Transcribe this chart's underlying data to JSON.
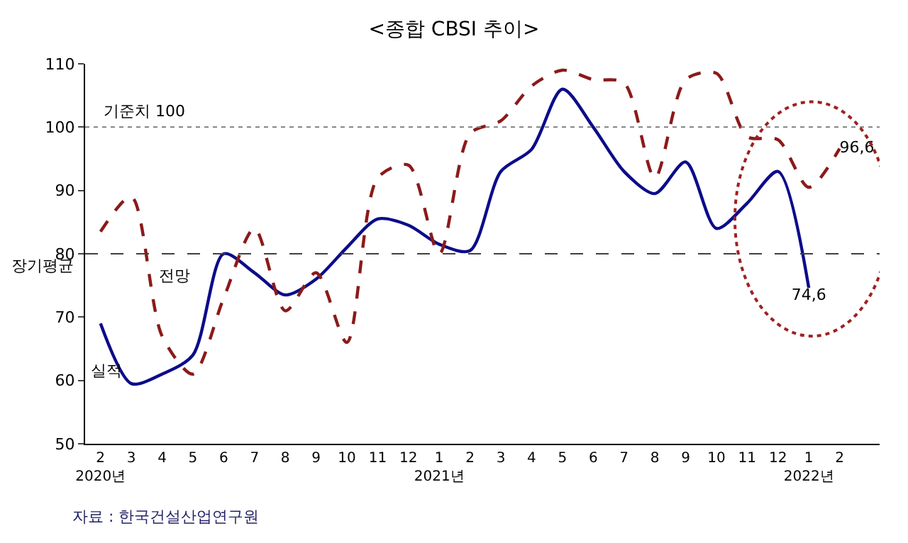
{
  "chart_data": {
    "type": "line",
    "title": "<종합 CBSI 추이>",
    "categories": [
      "2\n2020년",
      "3",
      "4",
      "5",
      "6",
      "7",
      "8",
      "9",
      "10",
      "11",
      "12",
      "1\n2021년",
      "2",
      "3",
      "4",
      "5",
      "6",
      "7",
      "8",
      "9",
      "10",
      "11",
      "12",
      "1\n2022년",
      "2"
    ],
    "series": [
      {
        "name": "실적",
        "color": "#0c0c8a",
        "line_style": "solid",
        "values": [
          69,
          59.5,
          61,
          64,
          80,
          77,
          73.5,
          76,
          81,
          85.5,
          84.5,
          81.5,
          80.5,
          93,
          96.5,
          106,
          100,
          93,
          89.5,
          94.5,
          84,
          88,
          93,
          74.6,
          null
        ],
        "value_labels": [
          null,
          null,
          null,
          null,
          null,
          null,
          null,
          null,
          null,
          null,
          null,
          null,
          null,
          null,
          null,
          null,
          null,
          null,
          null,
          null,
          null,
          null,
          null,
          "74,6",
          null
        ]
      },
      {
        "name": "전망",
        "color": "#8b1a1a",
        "line_style": "dashed",
        "values": [
          83.5,
          89,
          67,
          61,
          73,
          84,
          71,
          77,
          66,
          92,
          94,
          80,
          99,
          101,
          106.5,
          109,
          107.5,
          107,
          92,
          107.5,
          108.5,
          98.5,
          98,
          90.5,
          96.6
        ],
        "value_labels": [
          null,
          null,
          null,
          null,
          null,
          null,
          null,
          null,
          null,
          null,
          null,
          null,
          null,
          null,
          null,
          null,
          null,
          null,
          null,
          null,
          null,
          null,
          null,
          null,
          "96,6"
        ]
      }
    ],
    "ylim": [
      50,
      110
    ],
    "yticks": [
      50,
      60,
      70,
      80,
      90,
      100,
      110
    ],
    "grid": false,
    "legend": false,
    "marker": "none",
    "ref_lines": [
      {
        "axis": "y",
        "value": 100,
        "label": "기준치 100",
        "color": "#808080",
        "line_style": "dotted"
      },
      {
        "axis": "y",
        "value": 80,
        "label": "장기평균",
        "color": "#404040",
        "line_style": "dashed"
      }
    ],
    "annotations": [
      "자료 : 한국건설산업연구원"
    ]
  }
}
